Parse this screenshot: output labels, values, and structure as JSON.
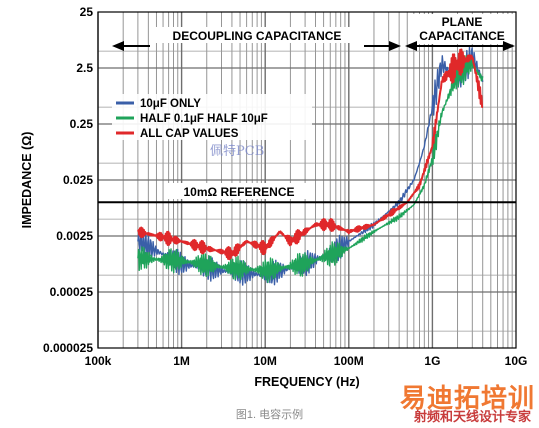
{
  "chart_data": {
    "type": "line",
    "xlabel": "FREQUENCY (Hz)",
    "ylabel": "IMPEDANCE (Ω)",
    "x_scale": "log",
    "y_scale": "log",
    "xlim": [
      100000,
      10000000000
    ],
    "ylim": [
      2.5e-05,
      25
    ],
    "x_tick_labels": [
      "100k",
      "1M",
      "10M",
      "100M",
      "1G",
      "10G"
    ],
    "y_tick_labels": [
      "25",
      "2.5",
      "0.25",
      "0.025",
      "0.0025",
      "0.00025",
      "0.000025"
    ],
    "grid": true,
    "legend_position": "top-left",
    "reference_line": {
      "label": "10mΩ REFERENCE",
      "y": 0.01
    },
    "regions": [
      {
        "label": "DECOUPLING CAPACITANCE",
        "x_from": 100000,
        "x_to": 500000000
      },
      {
        "label_line1": "PLANE",
        "label_line2": "CAPACITANCE",
        "x_from": 500000000,
        "x_to": 5000000000
      }
    ],
    "series": [
      {
        "name": "10μF ONLY",
        "color": "#3a5fa8",
        "x": [
          300000,
          1000000,
          3000000,
          10000000,
          30000000,
          60000000,
          100000000,
          200000000,
          400000000,
          600000000,
          700000000,
          800000000,
          1000000000,
          1300000000,
          2000000000,
          3000000000,
          4000000000
        ],
        "y": [
          0.002,
          0.0008,
          0.0006,
          0.0005,
          0.0008,
          0.0012,
          0.002,
          0.004,
          0.01,
          0.025,
          0.05,
          0.1,
          0.5,
          3,
          1.5,
          4,
          1.5
        ]
      },
      {
        "name": "HALF 0.1μF HALF 10μF",
        "color": "#1fa35a",
        "x": [
          300000,
          1000000,
          3000000,
          10000000,
          30000000,
          100000000,
          200000000,
          400000000,
          600000000,
          800000000,
          1000000000,
          1300000000,
          2000000000,
          3000000000,
          4000000000
        ],
        "y": [
          0.001,
          0.0009,
          0.0007,
          0.0006,
          0.0008,
          0.0015,
          0.003,
          0.0055,
          0.009,
          0.02,
          0.06,
          0.4,
          2,
          3,
          1.5
        ]
      },
      {
        "name": "ALL CAP VALUES",
        "color": "#e0282a",
        "x": [
          300000,
          1000000,
          2000000,
          4000000,
          6000000,
          10000000,
          15000000,
          20000000,
          40000000,
          60000000,
          100000000,
          200000000,
          300000000,
          500000000,
          700000000,
          1000000000,
          1300000000,
          2000000000,
          3000000000,
          4000000000
        ],
        "y": [
          0.003,
          0.002,
          0.0015,
          0.0012,
          0.002,
          0.0015,
          0.003,
          0.002,
          0.004,
          0.004,
          0.003,
          0.004,
          0.006,
          0.01,
          0.02,
          0.1,
          1.5,
          3,
          4,
          0.5
        ]
      }
    ]
  },
  "caption": "图1. 电容示例",
  "watermark_logo_text": "佩特PCB",
  "watermark_brand": "易迪拓培训",
  "watermark_sub": "射频和天线设计专家"
}
